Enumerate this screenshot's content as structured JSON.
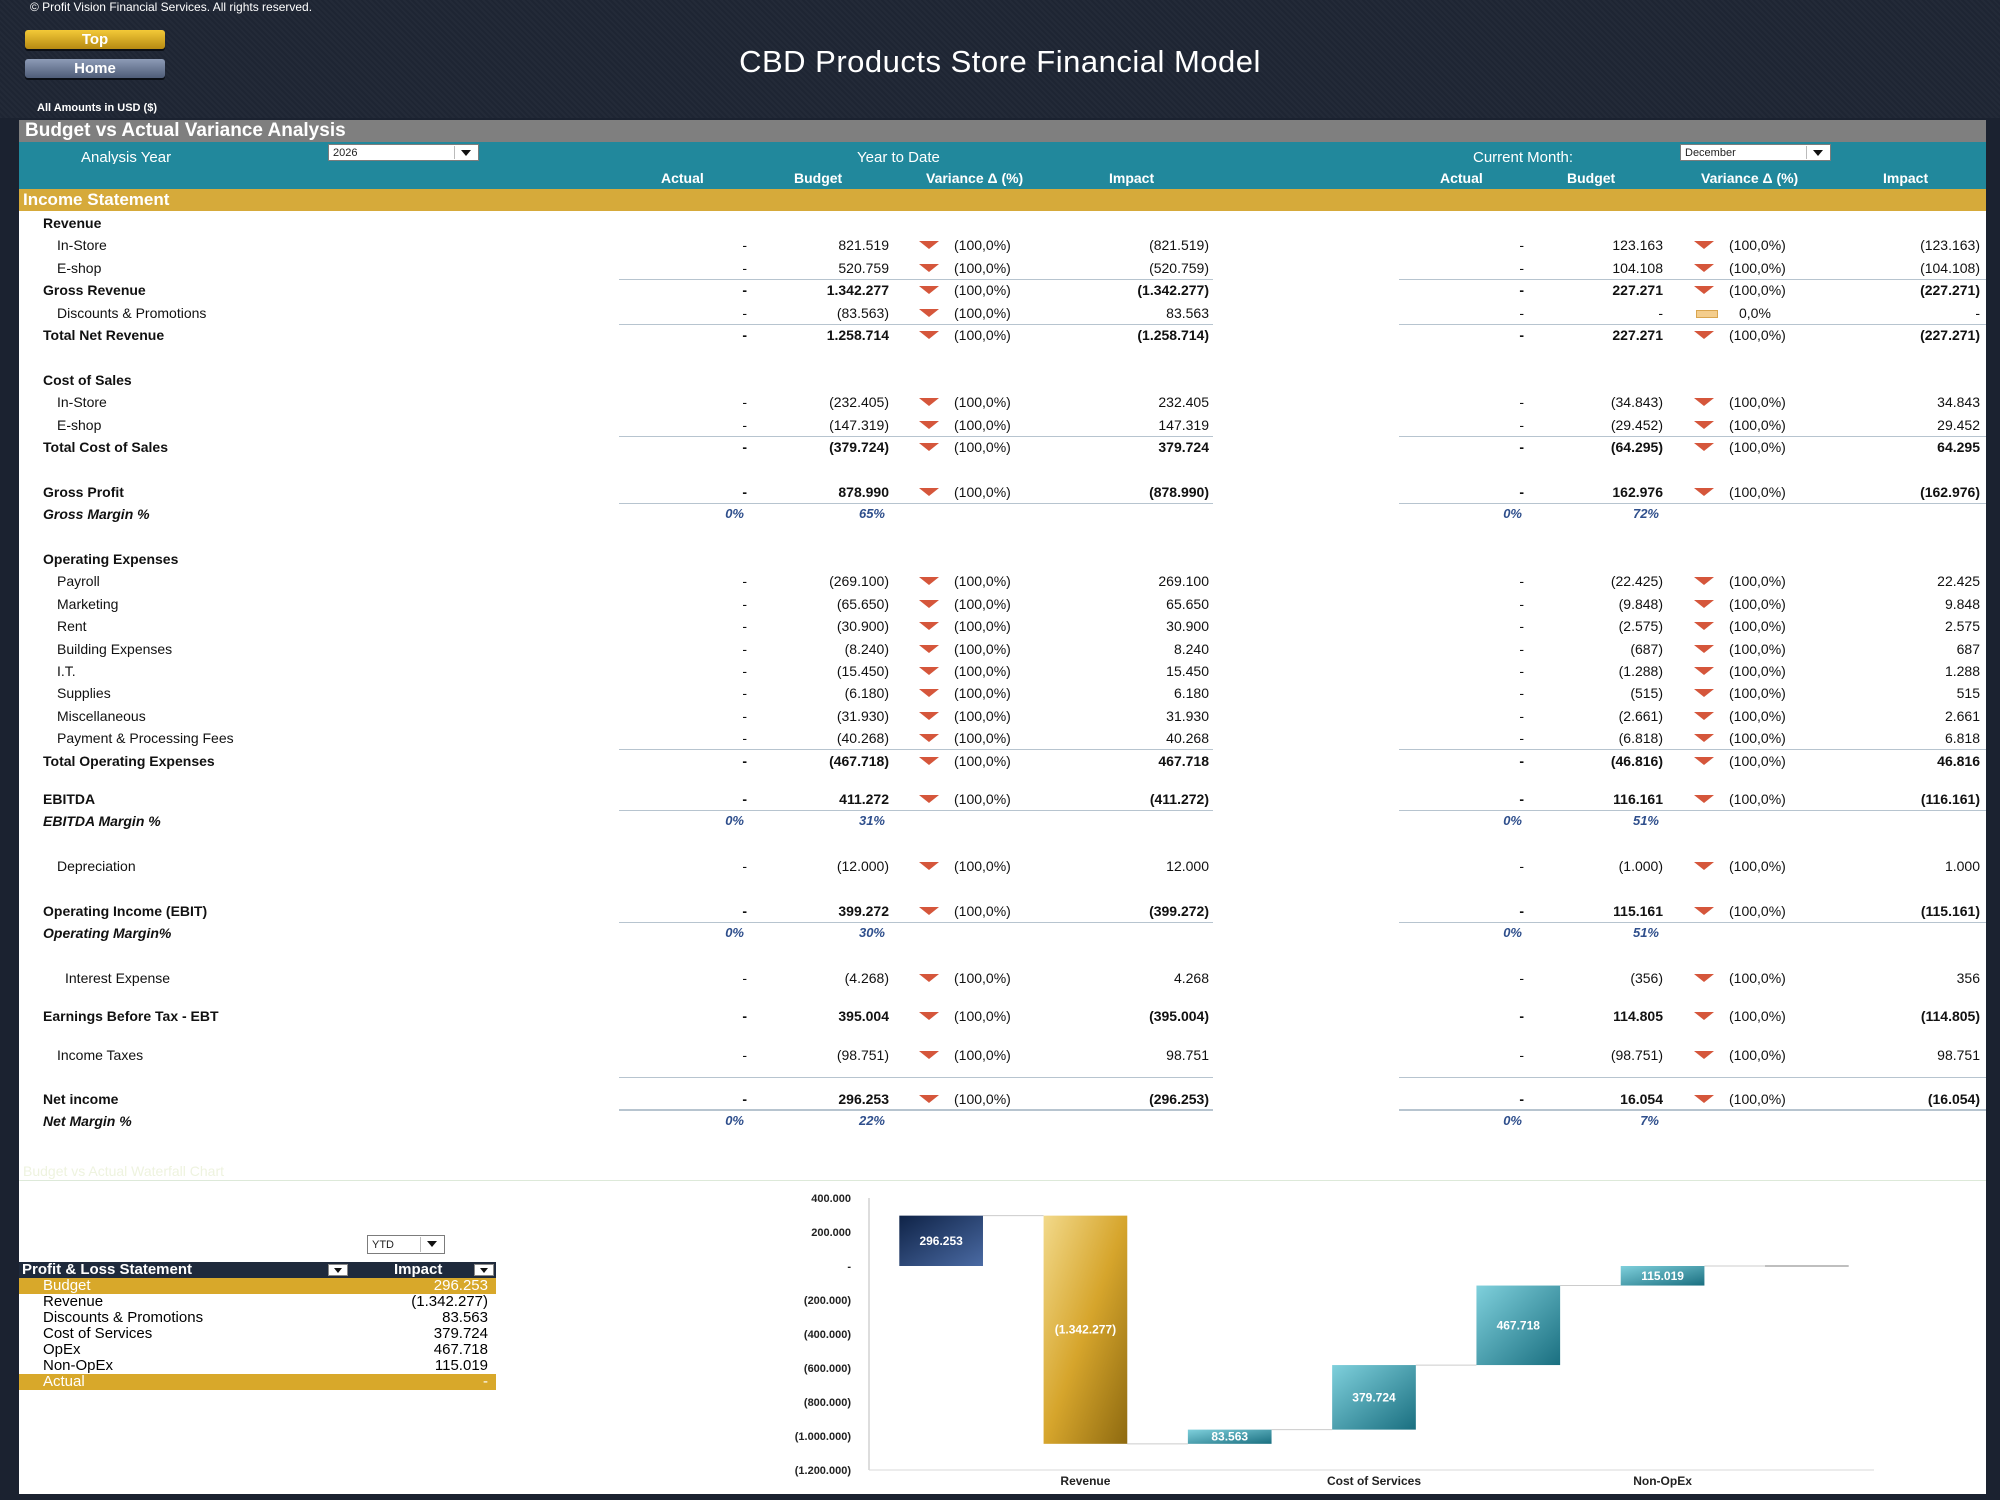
{
  "header": {
    "copyright": "© Profit Vision Financial Services. All rights reserved.",
    "nav_top": "Top",
    "nav_home": "Home",
    "title": "CBD Products Store Financial Model",
    "amounts": "All Amounts in  USD ($)"
  },
  "section_title": "Budget vs Actual Variance Analysis",
  "controls": {
    "analysis_year_label": "Analysis Year",
    "analysis_year": "2026",
    "ytd_label": "Year to Date",
    "current_month_label": "Current Month:",
    "current_month": "December"
  },
  "columns": {
    "ytd": [
      "Actual",
      "Budget",
      "Variance Δ  (%)",
      "Impact"
    ],
    "month": [
      "Actual",
      "Budget",
      "Variance Δ  (%)",
      "Impact"
    ]
  },
  "income_statement_title": "Income Statement",
  "rows": [
    {
      "label": "Revenue",
      "type": "header"
    },
    {
      "label": "In-Store",
      "indent": 1,
      "ytd": [
        "-",
        "821.519",
        "(100,0%)",
        "(821.519)"
      ],
      "mtd": [
        "-",
        "123.163",
        "(100,0%)",
        "(123.163)"
      ]
    },
    {
      "label": "E-shop",
      "indent": 1,
      "line": true,
      "ytd": [
        "-",
        "520.759",
        "(100,0%)",
        "(520.759)"
      ],
      "mtd": [
        "-",
        "104.108",
        "(100,0%)",
        "(104.108)"
      ]
    },
    {
      "label": "Gross Revenue",
      "bold": true,
      "ytd": [
        "-",
        "1.342.277",
        "(100,0%)",
        "(1.342.277)"
      ],
      "mtd": [
        "-",
        "227.271",
        "(100,0%)",
        "(227.271)"
      ]
    },
    {
      "label": "Discounts & Promotions",
      "indent": 1,
      "line": true,
      "ytd": [
        "-",
        "(83.563)",
        "(100,0%)",
        "83.563"
      ],
      "mtd": [
        "-",
        "-",
        "0,0%",
        "-"
      ],
      "mtd_flat": true
    },
    {
      "label": "Total Net Revenue",
      "bold": true,
      "ytd": [
        "-",
        "1.258.714",
        "(100,0%)",
        "(1.258.714)"
      ],
      "mtd": [
        "-",
        "227.271",
        "(100,0%)",
        "(227.271)"
      ]
    },
    {
      "type": "blank"
    },
    {
      "label": "Cost of Sales",
      "type": "header"
    },
    {
      "label": "In-Store",
      "indent": 1,
      "ytd": [
        "-",
        "(232.405)",
        "(100,0%)",
        "232.405"
      ],
      "mtd": [
        "-",
        "(34.843)",
        "(100,0%)",
        "34.843"
      ]
    },
    {
      "label": "E-shop",
      "indent": 1,
      "line": true,
      "ytd": [
        "-",
        "(147.319)",
        "(100,0%)",
        "147.319"
      ],
      "mtd": [
        "-",
        "(29.452)",
        "(100,0%)",
        "29.452"
      ]
    },
    {
      "label": "Total Cost of Sales",
      "bold": true,
      "ytd": [
        "-",
        "(379.724)",
        "(100,0%)",
        "379.724"
      ],
      "mtd": [
        "-",
        "(64.295)",
        "(100,0%)",
        "64.295"
      ]
    },
    {
      "type": "blank"
    },
    {
      "label": "Gross Profit",
      "bold": true,
      "line": true,
      "ytd": [
        "-",
        "878.990",
        "(100,0%)",
        "(878.990)"
      ],
      "mtd": [
        "-",
        "162.976",
        "(100,0%)",
        "(162.976)"
      ]
    },
    {
      "label": "Gross Margin %",
      "type": "margin",
      "ytd": [
        "0%",
        "65%"
      ],
      "mtd": [
        "0%",
        "72%"
      ]
    },
    {
      "type": "blank"
    },
    {
      "label": "Operating Expenses",
      "type": "header"
    },
    {
      "label": "Payroll",
      "indent": 1,
      "ytd": [
        "-",
        "(269.100)",
        "(100,0%)",
        "269.100"
      ],
      "mtd": [
        "-",
        "(22.425)",
        "(100,0%)",
        "22.425"
      ]
    },
    {
      "label": "Marketing",
      "indent": 1,
      "ytd": [
        "-",
        "(65.650)",
        "(100,0%)",
        "65.650"
      ],
      "mtd": [
        "-",
        "(9.848)",
        "(100,0%)",
        "9.848"
      ]
    },
    {
      "label": "Rent",
      "indent": 1,
      "ytd": [
        "-",
        "(30.900)",
        "(100,0%)",
        "30.900"
      ],
      "mtd": [
        "-",
        "(2.575)",
        "(100,0%)",
        "2.575"
      ]
    },
    {
      "label": "Building Expenses",
      "indent": 1,
      "ytd": [
        "-",
        "(8.240)",
        "(100,0%)",
        "8.240"
      ],
      "mtd": [
        "-",
        "(687)",
        "(100,0%)",
        "687"
      ]
    },
    {
      "label": "I.T.",
      "indent": 1,
      "ytd": [
        "-",
        "(15.450)",
        "(100,0%)",
        "15.450"
      ],
      "mtd": [
        "-",
        "(1.288)",
        "(100,0%)",
        "1.288"
      ]
    },
    {
      "label": "Supplies",
      "indent": 1,
      "ytd": [
        "-",
        "(6.180)",
        "(100,0%)",
        "6.180"
      ],
      "mtd": [
        "-",
        "(515)",
        "(100,0%)",
        "515"
      ]
    },
    {
      "label": "Miscellaneous",
      "indent": 1,
      "ytd": [
        "-",
        "(31.930)",
        "(100,0%)",
        "31.930"
      ],
      "mtd": [
        "-",
        "(2.661)",
        "(100,0%)",
        "2.661"
      ]
    },
    {
      "label": "Payment & Processing Fees",
      "indent": 1,
      "line": true,
      "ytd": [
        "-",
        "(40.268)",
        "(100,0%)",
        "40.268"
      ],
      "mtd": [
        "-",
        "(6.818)",
        "(100,0%)",
        "6.818"
      ]
    },
    {
      "label": "Total Operating Expenses",
      "bold": true,
      "ytd": [
        "-",
        "(467.718)",
        "(100,0%)",
        "467.718"
      ],
      "mtd": [
        "-",
        "(46.816)",
        "(100,0%)",
        "46.816"
      ]
    },
    {
      "type": "gap"
    },
    {
      "label": "EBITDA",
      "bold": true,
      "line": true,
      "ytd": [
        "-",
        "411.272",
        "(100,0%)",
        "(411.272)"
      ],
      "mtd": [
        "-",
        "116.161",
        "(100,0%)",
        "(116.161)"
      ]
    },
    {
      "label": "EBITDA Margin %",
      "type": "margin",
      "ytd": [
        "0%",
        "31%"
      ],
      "mtd": [
        "0%",
        "51%"
      ]
    },
    {
      "type": "blank"
    },
    {
      "label": "Depreciation",
      "indent": 1,
      "ytd": [
        "-",
        "(12.000)",
        "(100,0%)",
        "12.000"
      ],
      "mtd": [
        "-",
        "(1.000)",
        "(100,0%)",
        "1.000"
      ]
    },
    {
      "type": "blank"
    },
    {
      "label": "Operating Income (EBIT)",
      "bold": true,
      "line": true,
      "ytd": [
        "-",
        "399.272",
        "(100,0%)",
        "(399.272)"
      ],
      "mtd": [
        "-",
        "115.161",
        "(100,0%)",
        "(115.161)"
      ]
    },
    {
      "label": "Operating Margin%",
      "type": "margin",
      "ytd": [
        "0%",
        "30%"
      ],
      "mtd": [
        "0%",
        "51%"
      ]
    },
    {
      "type": "gap2"
    },
    {
      "label": "Interest Expense",
      "indent": 2,
      "ytd": [
        "-",
        "(4.268)",
        "(100,0%)",
        "4.268"
      ],
      "mtd": [
        "-",
        "(356)",
        "(100,0%)",
        "356"
      ]
    },
    {
      "type": "gap"
    },
    {
      "label": "Earnings Before Tax - EBT",
      "bold": true,
      "ytd": [
        "-",
        "395.004",
        "(100,0%)",
        "(395.004)"
      ],
      "mtd": [
        "-",
        "114.805",
        "(100,0%)",
        "(114.805)"
      ]
    },
    {
      "type": "gap"
    },
    {
      "label": "Income Taxes",
      "indent": 1,
      "ytd": [
        "-",
        "(98.751)",
        "(100,0%)",
        "98.751"
      ],
      "mtd": [
        "-",
        "(98.751)",
        "(100,0%)",
        "98.751"
      ]
    },
    {
      "type": "gap3"
    },
    {
      "label": "Net income",
      "bold": true,
      "topline": true,
      "line2": true,
      "ytd": [
        "-",
        "296.253",
        "(100,0%)",
        "(296.253)"
      ],
      "mtd": [
        "-",
        "16.054",
        "(100,0%)",
        "(16.054)"
      ]
    },
    {
      "label": "Net Margin %",
      "type": "margin",
      "tight": true,
      "ytd": [
        "0%",
        "22%"
      ],
      "mtd": [
        "0%",
        "7%"
      ]
    }
  ],
  "chart_section_title": "Budget vs Actual Waterfall Chart",
  "pl_table": {
    "selector": "YTD",
    "header": [
      "Profit & Loss Statement",
      "Impact"
    ],
    "rows": [
      {
        "name": "Budget",
        "value": "296.253",
        "highlight": true
      },
      {
        "name": "Revenue",
        "value": "(1.342.277)"
      },
      {
        "name": "Discounts & Promotions",
        "value": "83.563"
      },
      {
        "name": "Cost of Services",
        "value": "379.724"
      },
      {
        "name": "OpEx",
        "value": "467.718"
      },
      {
        "name": "Non-OpEx",
        "value": "115.019"
      },
      {
        "name": "Actual",
        "value": "-",
        "highlight": true
      }
    ]
  },
  "chart_data": {
    "type": "bar",
    "subtype": "waterfall",
    "categories": [
      "Budget",
      "Revenue",
      "Discounts &...",
      "Cost of Services",
      "OpEx",
      "Non-OpEx",
      "Actual"
    ],
    "steps": [
      {
        "category": "Budget",
        "start": 0,
        "end": 296253,
        "label": "296.253"
      },
      {
        "category": "Revenue",
        "start": 296253,
        "end": -1046024,
        "label": "(1.342.277)"
      },
      {
        "category": "Discounts &...",
        "start": -1046024,
        "end": -962461,
        "label": "83.563"
      },
      {
        "category": "Cost of Services",
        "start": -962461,
        "end": -582737,
        "label": "379.724"
      },
      {
        "category": "OpEx",
        "start": -582737,
        "end": -115019,
        "label": "467.718"
      },
      {
        "category": "Non-OpEx",
        "start": -115019,
        "end": 0,
        "label": "115.019"
      },
      {
        "category": "Actual",
        "start": 0,
        "end": 0,
        "label": ""
      }
    ],
    "yticks": [
      400000,
      200000,
      0,
      -200000,
      -400000,
      -600000,
      -800000,
      -1000000,
      -1200000
    ],
    "ytick_labels": [
      "400.000",
      "200.000",
      "-",
      "(200.000)",
      "(400.000)",
      "(600.000)",
      "(800.000)",
      "(1.000.000)",
      "(1.200.000)"
    ],
    "ylim": [
      -1200000,
      400000
    ],
    "colors": {
      "budget": "#1f3b6b",
      "revenue": "#d6a52c",
      "steps": "#2b8fa1",
      "actual": "#1f3b6b"
    }
  }
}
